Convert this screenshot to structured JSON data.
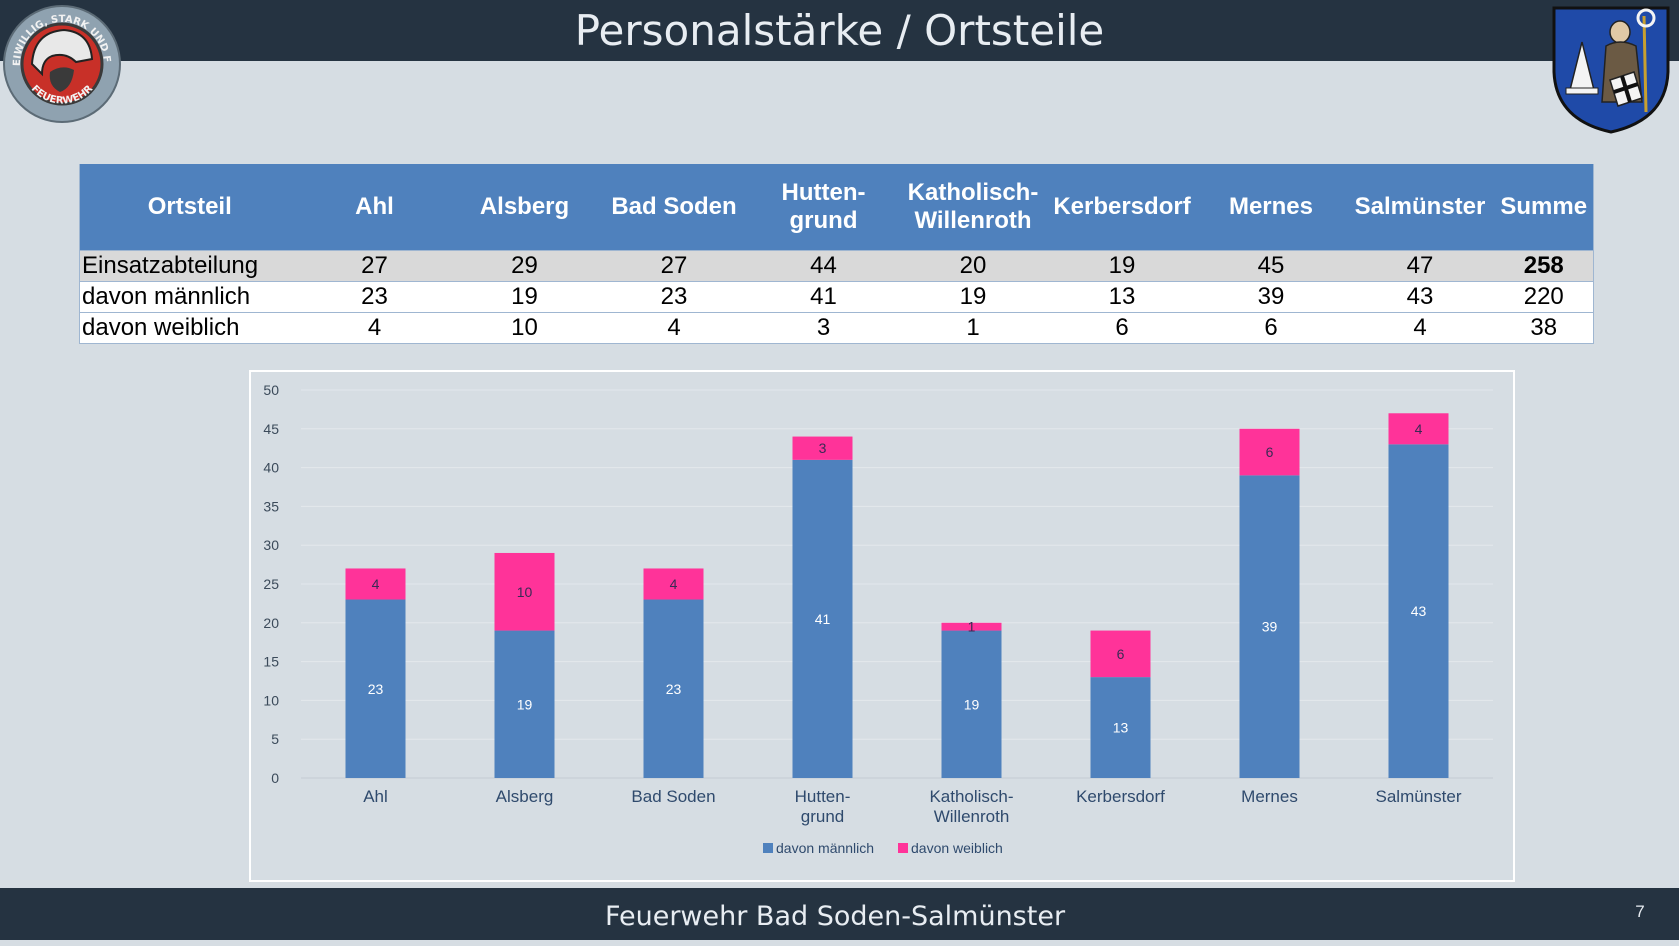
{
  "header": {
    "title": "Personalstärke / Ortsteile"
  },
  "footer": {
    "text": "Feuerwehr Bad Soden-Salmünster",
    "page_number": "7"
  },
  "logo_left": {
    "text_top": "FREIWILLIG, STARK UND FAIR",
    "text_bottom": "FEUERWEHR"
  },
  "table": {
    "columns": [
      "Ortsteil",
      "Ahl",
      "Alsberg",
      "Bad Soden",
      "Hutten-|grund",
      "Katholisch-|Willenroth",
      "Kerbersdorf",
      "Mernes",
      "Salmünster",
      "Summe"
    ],
    "rows": [
      {
        "label": "Einsatzabteilung",
        "values": [
          "27",
          "29",
          "27",
          "44",
          "20",
          "19",
          "45",
          "47",
          "258"
        ]
      },
      {
        "label": "davon männlich",
        "values": [
          "23",
          "19",
          "23",
          "41",
          "19",
          "13",
          "39",
          "43",
          "220"
        ]
      },
      {
        "label": "davon weiblich",
        "values": [
          "4",
          "10",
          "4",
          "3",
          "1",
          "6",
          "6",
          "4",
          "38"
        ]
      }
    ]
  },
  "chart_data": {
    "type": "bar",
    "stacked": true,
    "categories": [
      "Ahl",
      "Alsberg",
      "Bad Soden",
      "Hutten-|grund",
      "Katholisch-|Willenroth",
      "Kerbersdorf",
      "Mernes",
      "Salmünster"
    ],
    "series": [
      {
        "name": "davon männlich",
        "values": [
          23,
          19,
          23,
          41,
          19,
          13,
          39,
          43
        ],
        "color": "#4f81bd"
      },
      {
        "name": "davon weiblich",
        "values": [
          4,
          10,
          4,
          3,
          1,
          6,
          6,
          4
        ],
        "color": "#ff3399"
      }
    ],
    "ylim": [
      0,
      50
    ],
    "yticks": [
      0,
      5,
      10,
      15,
      20,
      25,
      30,
      35,
      40,
      45,
      50
    ],
    "grid": true,
    "legend_position": "bottom",
    "title": "",
    "xlabel": "",
    "ylabel": ""
  },
  "colors": {
    "bar_blue": "#4f81bd",
    "bar_pink": "#ff3399",
    "bar_dark": "#253341",
    "table_header": "#4f81bd"
  }
}
